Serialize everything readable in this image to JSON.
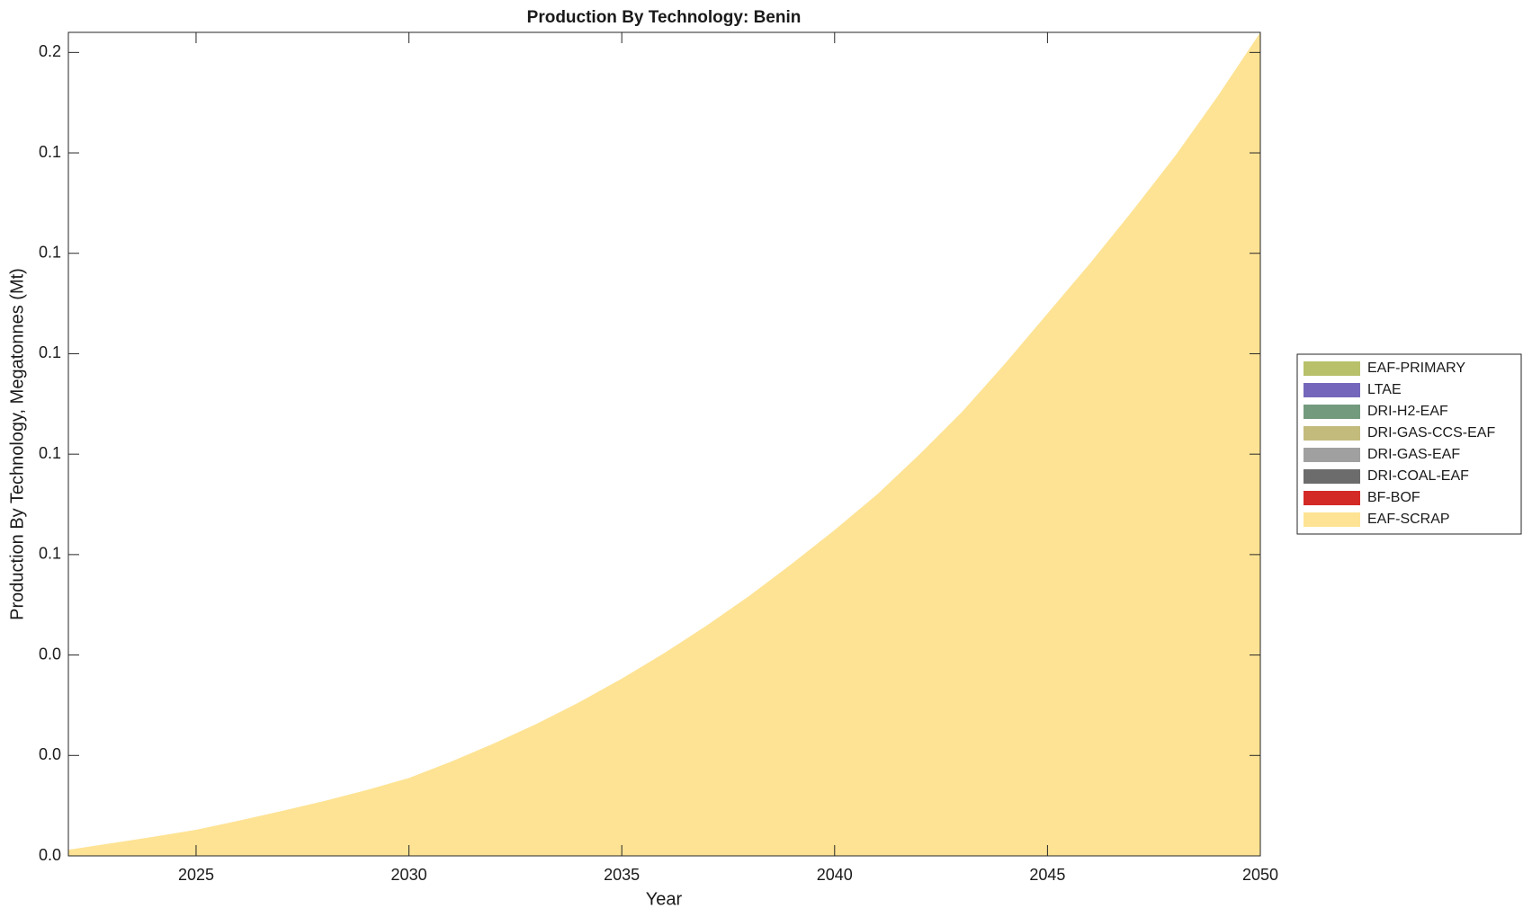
{
  "chart_data": {
    "type": "area",
    "stacked": true,
    "title": "Production By Technology: Benin",
    "xlabel": "Year",
    "ylabel": "Production By Technology, Megatonnes (Mt)",
    "x": [
      2022,
      2023,
      2024,
      2025,
      2026,
      2027,
      2028,
      2029,
      2030,
      2031,
      2032,
      2033,
      2034,
      2035,
      2036,
      2037,
      2038,
      2039,
      2040,
      2041,
      2042,
      2043,
      2044,
      2045,
      2046,
      2047,
      2048,
      2049,
      2050
    ],
    "xlim": [
      2022,
      2050
    ],
    "xticks": [
      2025,
      2030,
      2035,
      2040,
      2045,
      2050
    ],
    "ylim": [
      0,
      0.164
    ],
    "yticks": [
      {
        "value": 0,
        "label": "0.0"
      },
      {
        "value": 0.02,
        "label": "0.0"
      },
      {
        "value": 0.04,
        "label": "0.0"
      },
      {
        "value": 0.06,
        "label": "0.1"
      },
      {
        "value": 0.08,
        "label": "0.1"
      },
      {
        "value": 0.1,
        "label": "0.1"
      },
      {
        "value": 0.12,
        "label": "0.1"
      },
      {
        "value": 0.14,
        "label": "0.1"
      },
      {
        "value": 0.16,
        "label": "0.2"
      }
    ],
    "legend": "right",
    "series": [
      {
        "name": "EAF-PRIMARY",
        "color": "#b8c06a",
        "values": [
          0,
          0,
          0,
          0,
          0,
          0,
          0,
          0,
          0,
          0,
          0,
          0,
          0,
          0,
          0,
          0,
          0,
          0,
          0,
          0,
          0,
          0,
          0,
          0,
          0,
          0,
          0,
          0,
          0
        ]
      },
      {
        "name": "LTAE",
        "color": "#7467bb",
        "values": [
          0,
          0,
          0,
          0,
          0,
          0,
          0,
          0,
          0,
          0,
          0,
          0,
          0,
          0,
          0,
          0,
          0,
          0,
          0,
          0,
          0,
          0,
          0,
          0,
          0,
          0,
          0,
          0,
          0
        ]
      },
      {
        "name": "DRI-H2-EAF",
        "color": "#749a7e",
        "values": [
          0,
          0,
          0,
          0,
          0,
          0,
          0,
          0,
          0,
          0,
          0,
          0,
          0,
          0,
          0,
          0,
          0,
          0,
          0,
          0,
          0,
          0,
          0,
          0,
          0,
          0,
          0,
          0,
          0
        ]
      },
      {
        "name": "DRI-GAS-CCS-EAF",
        "color": "#c3bb7c",
        "values": [
          0,
          0,
          0,
          0,
          0,
          0,
          0,
          0,
          0,
          0,
          0,
          0,
          0,
          0,
          0,
          0,
          0,
          0,
          0,
          0,
          0,
          0,
          0,
          0,
          0,
          0,
          0,
          0,
          0
        ]
      },
      {
        "name": "DRI-GAS-EAF",
        "color": "#a0a0a0",
        "values": [
          0,
          0,
          0,
          0,
          0,
          0,
          0,
          0,
          0,
          0,
          0,
          0,
          0,
          0,
          0,
          0,
          0,
          0,
          0,
          0,
          0,
          0,
          0,
          0,
          0,
          0,
          0,
          0,
          0
        ]
      },
      {
        "name": "DRI-COAL-EAF",
        "color": "#6c6c6c",
        "values": [
          0,
          0,
          0,
          0,
          0,
          0,
          0,
          0,
          0,
          0,
          0,
          0,
          0,
          0,
          0,
          0,
          0,
          0,
          0,
          0,
          0,
          0,
          0,
          0,
          0,
          0,
          0,
          0,
          0
        ]
      },
      {
        "name": "BF-BOF",
        "color": "#d42a26",
        "values": [
          0,
          0,
          0,
          0,
          0,
          0,
          0,
          0,
          0,
          0,
          0,
          0,
          0,
          0,
          0,
          0,
          0,
          0,
          0,
          0,
          0,
          0,
          0,
          0,
          0,
          0,
          0,
          0,
          0
        ]
      },
      {
        "name": "EAF-SCRAP",
        "color": "#fee394",
        "values": [
          0.0012,
          0.0025,
          0.0038,
          0.0052,
          0.007,
          0.0089,
          0.0109,
          0.0131,
          0.0155,
          0.0188,
          0.0224,
          0.0263,
          0.0306,
          0.0353,
          0.0404,
          0.0459,
          0.0518,
          0.0582,
          0.0649,
          0.072,
          0.08,
          0.0885,
          0.098,
          0.108,
          0.118,
          0.1285,
          0.1394,
          0.1513,
          0.164
        ]
      }
    ]
  }
}
